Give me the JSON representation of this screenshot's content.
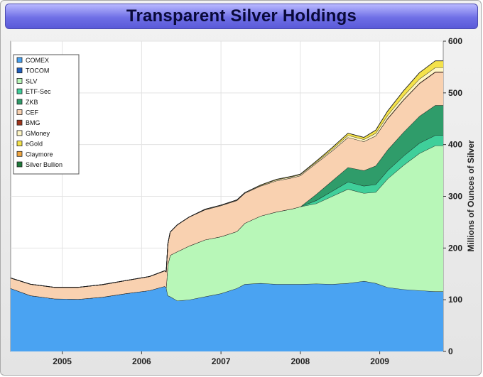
{
  "title": "Transparent Silver Holdings",
  "chart_data": {
    "type": "area",
    "title": "Transparent Silver Holdings",
    "xlabel": "",
    "ylabel": "Millions of Ounces of Silver",
    "xlim": [
      2004.35,
      2009.8
    ],
    "ylim": [
      0,
      600
    ],
    "x_ticks": [
      {
        "value": 2005.0,
        "label": "2005"
      },
      {
        "value": 2006.0,
        "label": "2006"
      },
      {
        "value": 2007.0,
        "label": "2007"
      },
      {
        "value": 2008.0,
        "label": "2008"
      },
      {
        "value": 2009.0,
        "label": "2009"
      }
    ],
    "y_ticks": [
      0,
      100,
      200,
      300,
      400,
      500,
      600
    ],
    "grid": true,
    "legend_position": "top-left",
    "stacked": true,
    "x": [
      2004.35,
      2004.6,
      2004.9,
      2005.2,
      2005.5,
      2005.8,
      2006.1,
      2006.29,
      2006.31,
      2006.33,
      2006.36,
      2006.45,
      2006.6,
      2006.8,
      2007.0,
      2007.2,
      2007.3,
      2007.5,
      2007.7,
      2007.9,
      2008.0,
      2008.2,
      2008.4,
      2008.6,
      2008.8,
      2008.95,
      2009.1,
      2009.3,
      2009.5,
      2009.7,
      2009.8
    ],
    "series": [
      {
        "name": "COMEX",
        "color": "#4aa3f2",
        "values": [
          122,
          108,
          102,
          101,
          105,
          112,
          118,
          126,
          124,
          108,
          106,
          98,
          100,
          106,
          112,
          122,
          130,
          132,
          130,
          130,
          130,
          131,
          130,
          132,
          136,
          132,
          124,
          120,
          118,
          116,
          116
        ]
      },
      {
        "name": "TOCOM",
        "color": "#1f5fc0",
        "values": [
          0,
          0,
          0,
          0,
          0,
          0,
          0,
          0,
          0,
          0,
          0,
          0,
          0,
          0,
          0,
          0,
          0,
          0,
          0,
          0,
          0,
          0,
          0,
          0,
          0,
          0,
          0,
          0,
          0,
          0,
          0
        ]
      },
      {
        "name": "SLV",
        "color": "#b8f7b8",
        "values": [
          0,
          0,
          0,
          0,
          0,
          0,
          0,
          0,
          0,
          60,
          80,
          95,
          104,
          110,
          110,
          110,
          118,
          130,
          140,
          146,
          150,
          155,
          170,
          182,
          170,
          176,
          210,
          240,
          265,
          282,
          282
        ]
      },
      {
        "name": "ETF-Sec",
        "color": "#3fcf9a",
        "values": [
          0,
          0,
          0,
          0,
          0,
          0,
          0,
          0,
          0,
          0,
          0,
          0,
          0,
          0,
          0,
          0,
          0,
          0,
          0,
          0,
          0,
          6,
          10,
          14,
          14,
          15,
          16,
          18,
          20,
          20,
          20
        ]
      },
      {
        "name": "ZKB",
        "color": "#2f9c6a",
        "values": [
          0,
          0,
          0,
          0,
          0,
          0,
          0,
          0,
          0,
          0,
          0,
          0,
          0,
          0,
          0,
          0,
          0,
          0,
          0,
          0,
          0,
          12,
          20,
          28,
          30,
          36,
          40,
          46,
          52,
          58,
          58
        ]
      },
      {
        "name": "CEF",
        "color": "#f9d1b0",
        "values": [
          20,
          22,
          22,
          23,
          24,
          25,
          27,
          30,
          30,
          40,
          45,
          52,
          56,
          58,
          60,
          60,
          58,
          58,
          60,
          60,
          60,
          60,
          58,
          58,
          56,
          58,
          60,
          62,
          63,
          64,
          64
        ]
      },
      {
        "name": "BMG",
        "color": "#a0341a",
        "values": [
          0,
          0,
          0,
          0,
          0,
          0,
          0,
          0,
          0,
          0,
          0,
          0,
          0,
          0,
          0,
          0,
          0,
          0,
          0,
          0,
          0,
          0,
          0,
          0,
          0,
          0,
          1,
          1,
          1,
          1,
          1
        ]
      },
      {
        "name": "GMoney",
        "color": "#fff6c4",
        "values": [
          0,
          0,
          0,
          0,
          0,
          0,
          0,
          0,
          0,
          0,
          0,
          0,
          0,
          1,
          1,
          1,
          1,
          1,
          2,
          2,
          2,
          2,
          3,
          4,
          4,
          5,
          6,
          7,
          8,
          8,
          8
        ]
      },
      {
        "name": "eGold",
        "color": "#f4e24a",
        "values": [
          0,
          0,
          0,
          0,
          0,
          0,
          0,
          0,
          0,
          0,
          0,
          0,
          0,
          0,
          0,
          0,
          0,
          1,
          1,
          1,
          1,
          2,
          3,
          4,
          4,
          6,
          8,
          10,
          12,
          13,
          13
        ]
      },
      {
        "name": "Claymore",
        "color": "#f0a640",
        "values": [
          0,
          0,
          0,
          0,
          0,
          0,
          0,
          0,
          0,
          0,
          0,
          0,
          0,
          0,
          0,
          0,
          0,
          0,
          0,
          0,
          0,
          0,
          0,
          0,
          0,
          0,
          0,
          0,
          0,
          0,
          0
        ]
      },
      {
        "name": "Silver Bullion",
        "color": "#1e7a3a",
        "values": [
          0,
          0,
          0,
          0,
          0,
          0,
          0,
          0,
          0,
          0,
          0,
          0,
          0,
          0,
          0,
          0,
          0,
          0,
          0,
          0,
          0,
          0,
          0,
          0,
          0,
          0,
          0,
          0,
          0,
          0,
          0
        ]
      }
    ]
  }
}
